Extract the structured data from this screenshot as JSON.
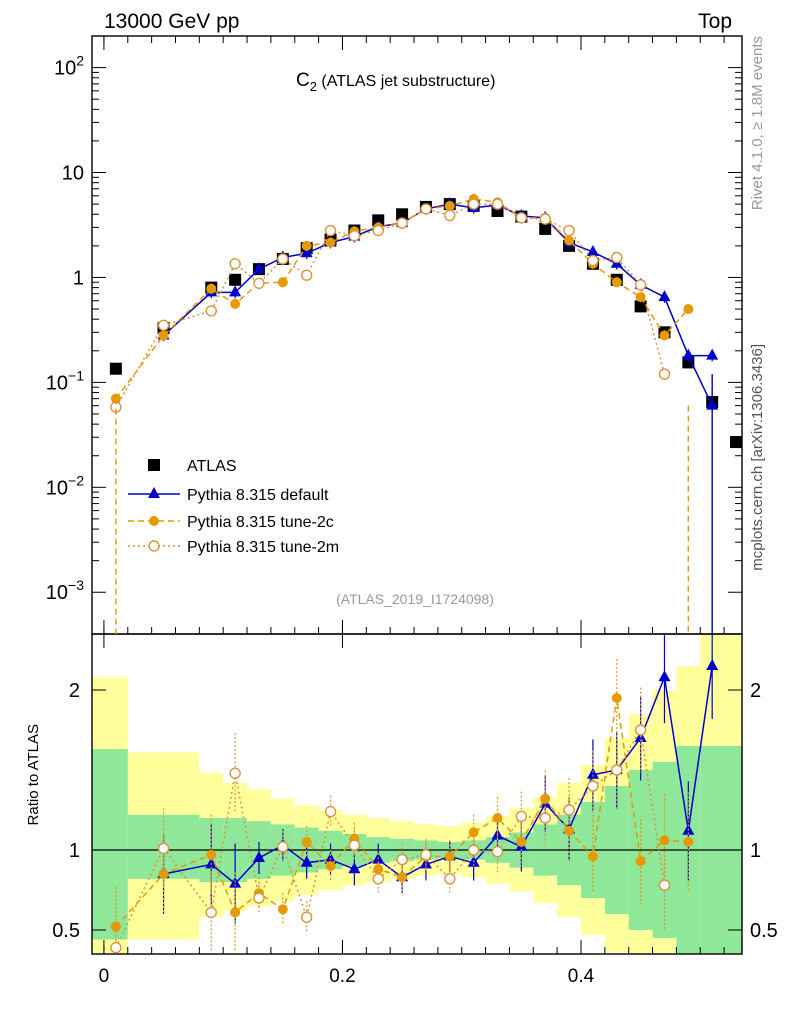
{
  "header": {
    "left": "13000 GeV pp",
    "right": "Top"
  },
  "side_labels": {
    "rivet": "Rivet 4.1.0, ≥ 1.8M events",
    "source": "mcplots.cern.ch [arXiv:1306.3436]"
  },
  "chart_data": {
    "type": "scatter",
    "title_main": "C",
    "title_sub": "2",
    "title_rest": " (ATLAS jet substructure)",
    "analysis_label": "(ATLAS_2019_I1724098)",
    "top_panel": {
      "yscale": "log",
      "ylim": [
        0.0004,
        200
      ],
      "yticks": [
        {
          "value": 100,
          "base": "10",
          "exp": "2"
        },
        {
          "value": 10,
          "base": "10",
          "exp": ""
        },
        {
          "value": 1,
          "base": "1",
          "exp": ""
        },
        {
          "value": 0.1,
          "base": "10",
          "exp": "−1"
        },
        {
          "value": 0.01,
          "base": "10",
          "exp": "−2"
        },
        {
          "value": 0.001,
          "base": "10",
          "exp": "−3"
        }
      ]
    },
    "ratio_panel": {
      "ylabel": "Ratio to ATLAS",
      "ylim": [
        0.35,
        2.35
      ],
      "yticks": [
        {
          "value": 2,
          "label": "2"
        },
        {
          "value": 1,
          "label": "1"
        },
        {
          "value": 0.5,
          "label": "0.5"
        }
      ]
    },
    "x_axis": {
      "xlim": [
        -0.01,
        0.535
      ],
      "ticks": [
        {
          "value": 0,
          "label": "0"
        },
        {
          "value": 0.2,
          "label": "0.2"
        },
        {
          "value": 0.4,
          "label": "0.4"
        }
      ]
    },
    "series": [
      {
        "name": "ATLAS",
        "color": "#000000",
        "marker": "square",
        "x": [
          0.01,
          0.05,
          0.09,
          0.11,
          0.13,
          0.15,
          0.17,
          0.19,
          0.21,
          0.23,
          0.25,
          0.27,
          0.29,
          0.31,
          0.33,
          0.35,
          0.37,
          0.39,
          0.41,
          0.43,
          0.45,
          0.47,
          0.49,
          0.51,
          0.53
        ],
        "y": [
          0.135,
          0.33,
          0.8,
          0.95,
          1.2,
          1.5,
          1.9,
          2.3,
          2.8,
          3.5,
          4.0,
          4.7,
          5.0,
          4.8,
          4.3,
          3.8,
          2.9,
          2.0,
          1.35,
          0.95,
          0.53,
          0.3,
          0.155,
          0.065,
          0.027
        ]
      },
      {
        "name": "Pythia 8.315 default",
        "color": "#0000cc",
        "marker": "triangle",
        "line": "solid",
        "x": [
          0.05,
          0.09,
          0.11,
          0.13,
          0.15,
          0.17,
          0.19,
          0.21,
          0.23,
          0.25,
          0.27,
          0.29,
          0.31,
          0.33,
          0.35,
          0.37,
          0.39,
          0.41,
          0.43,
          0.45,
          0.47,
          0.49,
          0.51
        ],
        "y": [
          0.28,
          0.72,
          0.72,
          1.2,
          1.55,
          1.7,
          2.15,
          2.45,
          3.05,
          3.3,
          4.5,
          5.0,
          4.6,
          4.9,
          3.85,
          3.7,
          2.15,
          1.75,
          1.35,
          0.85,
          0.65,
          0.18,
          0.18
        ],
        "y_last": 0.06
      },
      {
        "name": "Pythia 8.315 tune-2c",
        "color": "#e69a00",
        "marker": "circle",
        "line": "dashed",
        "x": [
          0.01,
          0.05,
          0.09,
          0.11,
          0.13,
          0.15,
          0.17,
          0.19,
          0.21,
          0.23,
          0.25,
          0.27,
          0.29,
          0.31,
          0.33,
          0.35,
          0.37,
          0.39,
          0.41,
          0.43,
          0.45,
          0.47,
          0.49
        ],
        "y": [
          0.07,
          0.28,
          0.78,
          0.56,
          0.88,
          0.9,
          2.0,
          2.15,
          2.75,
          3.0,
          3.3,
          4.5,
          4.8,
          5.6,
          5.2,
          3.7,
          3.7,
          2.25,
          1.35,
          0.9,
          0.65,
          0.28,
          0.5
        ]
      },
      {
        "name": "Pythia 8.315 tune-2m",
        "color": "#d9923f",
        "marker": "open-circle",
        "line": "dotted",
        "x": [
          0.01,
          0.05,
          0.09,
          0.11,
          0.13,
          0.15,
          0.17,
          0.19,
          0.21,
          0.23,
          0.25,
          0.27,
          0.29,
          0.31,
          0.33,
          0.35,
          0.37,
          0.39,
          0.41,
          0.43,
          0.45,
          0.47
        ],
        "y": [
          0.058,
          0.35,
          0.48,
          1.35,
          0.88,
          1.5,
          1.05,
          2.8,
          2.5,
          2.8,
          3.3,
          4.5,
          3.9,
          5.0,
          5.0,
          3.7,
          3.6,
          2.8,
          1.45,
          1.55,
          0.85,
          0.12
        ]
      }
    ],
    "ratio_series": [
      {
        "name": "Pythia 8.315 default",
        "color": "#0000cc",
        "x": [
          0.05,
          0.09,
          0.11,
          0.13,
          0.15,
          0.17,
          0.19,
          0.21,
          0.23,
          0.25,
          0.27,
          0.29,
          0.31,
          0.33,
          0.35,
          0.37,
          0.39,
          0.41,
          0.43,
          0.45,
          0.47,
          0.49,
          0.51
        ],
        "y": [
          0.85,
          0.91,
          0.79,
          0.95,
          1.03,
          0.92,
          0.94,
          0.88,
          0.94,
          0.83,
          0.91,
          0.96,
          0.92,
          1.09,
          1.02,
          1.29,
          1.13,
          1.47,
          1.5,
          1.7,
          2.08,
          1.12,
          2.15
        ]
      },
      {
        "name": "Pythia 8.315 tune-2c",
        "color": "#e69a00",
        "x": [
          0.01,
          0.05,
          0.09,
          0.11,
          0.13,
          0.15,
          0.17,
          0.19,
          0.21,
          0.23,
          0.25,
          0.27,
          0.29,
          0.31,
          0.33,
          0.35,
          0.37,
          0.39,
          0.41,
          0.43,
          0.45,
          0.47,
          0.49
        ],
        "y": [
          0.52,
          0.85,
          0.97,
          0.61,
          0.73,
          0.63,
          1.05,
          0.9,
          1.07,
          0.88,
          0.83,
          0.96,
          0.96,
          1.11,
          1.2,
          1.05,
          1.32,
          1.12,
          0.96,
          1.95,
          0.93,
          1.06,
          1.05
        ]
      },
      {
        "name": "Pythia 8.315 tune-2m",
        "color": "#d9923f",
        "x": [
          0.01,
          0.05,
          0.09,
          0.11,
          0.13,
          0.15,
          0.17,
          0.19,
          0.21,
          0.23,
          0.25,
          0.27,
          0.29,
          0.31,
          0.33,
          0.35,
          0.37,
          0.39,
          0.41,
          0.43,
          0.45,
          0.47
        ],
        "y": [
          0.39,
          1.01,
          0.61,
          1.48,
          0.7,
          1.02,
          0.58,
          1.24,
          1.03,
          0.82,
          0.94,
          0.97,
          0.82,
          1.0,
          0.99,
          1.21,
          1.2,
          1.25,
          1.4,
          1.5,
          1.75,
          0.78
        ]
      }
    ],
    "uncertainty_bands": {
      "colors": {
        "stat": "#8fe89a",
        "total": "#ffff9c"
      },
      "edges": [
        -0.01,
        0.01,
        0.02,
        0.07,
        0.08,
        0.1,
        0.12,
        0.14,
        0.16,
        0.18,
        0.2,
        0.22,
        0.24,
        0.26,
        0.28,
        0.3,
        0.32,
        0.34,
        0.36,
        0.38,
        0.4,
        0.42,
        0.44,
        0.46,
        0.48,
        0.5,
        0.52,
        0.535
      ],
      "stat": [
        [
          0.44,
          1.63
        ],
        [
          0.44,
          1.63
        ],
        [
          0.82,
          1.22
        ],
        [
          0.82,
          1.22
        ],
        [
          0.8,
          1.2
        ],
        [
          0.8,
          1.2
        ],
        [
          0.82,
          1.18
        ],
        [
          0.84,
          1.16
        ],
        [
          0.86,
          1.14
        ],
        [
          0.88,
          1.12
        ],
        [
          0.9,
          1.1
        ],
        [
          0.92,
          1.08
        ],
        [
          0.93,
          1.07
        ],
        [
          0.94,
          1.06
        ],
        [
          0.95,
          1.05
        ],
        [
          0.94,
          1.06
        ],
        [
          0.92,
          1.08
        ],
        [
          0.89,
          1.11
        ],
        [
          0.84,
          1.16
        ],
        [
          0.78,
          1.22
        ],
        [
          0.7,
          1.3
        ],
        [
          0.6,
          1.4
        ],
        [
          0.5,
          1.5
        ],
        [
          0.45,
          1.55
        ],
        [
          0.35,
          1.65
        ],
        [
          0.35,
          1.65
        ],
        [
          0.35,
          1.65
        ]
      ],
      "total": [
        [
          0.35,
          2.08
        ],
        [
          0.35,
          2.08
        ],
        [
          0.44,
          1.61
        ],
        [
          0.44,
          1.61
        ],
        [
          0.58,
          1.48
        ],
        [
          0.62,
          1.42
        ],
        [
          0.65,
          1.38
        ],
        [
          0.68,
          1.32
        ],
        [
          0.72,
          1.28
        ],
        [
          0.75,
          1.25
        ],
        [
          0.78,
          1.22
        ],
        [
          0.8,
          1.2
        ],
        [
          0.82,
          1.18
        ],
        [
          0.84,
          1.16
        ],
        [
          0.85,
          1.15
        ],
        [
          0.83,
          1.17
        ],
        [
          0.79,
          1.21
        ],
        [
          0.74,
          1.26
        ],
        [
          0.67,
          1.33
        ],
        [
          0.58,
          1.42
        ],
        [
          0.47,
          1.53
        ],
        [
          0.36,
          1.7
        ],
        [
          0.35,
          1.85
        ],
        [
          0.35,
          2.0
        ],
        [
          0.35,
          2.15
        ],
        [
          0.35,
          2.35
        ],
        [
          0.35,
          2.35
        ]
      ]
    }
  }
}
